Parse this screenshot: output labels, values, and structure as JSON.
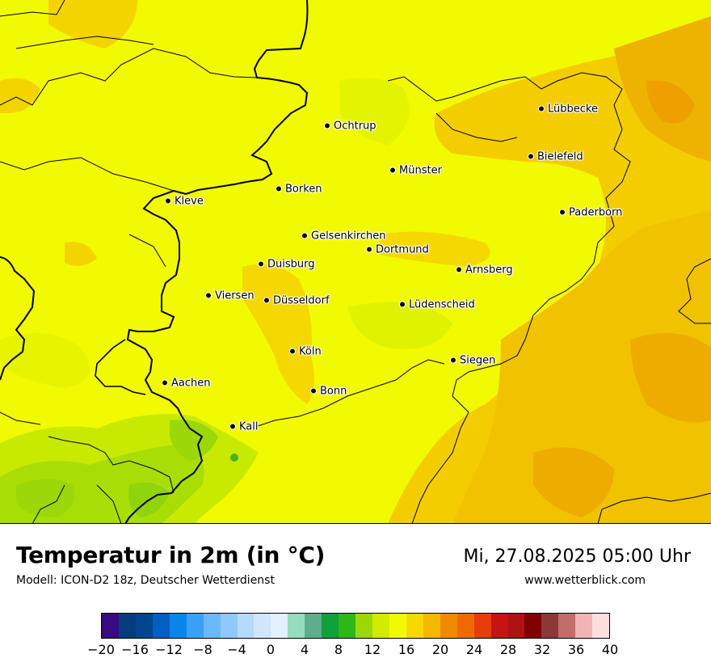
{
  "title": "Temperatur in 2m (in °C)",
  "model": "Modell: ICON-D2 18z, Deutscher Wetterdienst",
  "datetime": "Mi, 27.08.2025 05:00 Uhr",
  "website": "www.wetterblick.com",
  "legend": {
    "colors": [
      "#3a0a80",
      "#063c7e",
      "#00468f",
      "#005fbf",
      "#0a86ea",
      "#3aa0f5",
      "#6cb8fb",
      "#90c8fb",
      "#b4dafc",
      "#cfe6fd",
      "#e2f0ff",
      "#94dcbc",
      "#5fae8a",
      "#11a039",
      "#2db81a",
      "#9ad80a",
      "#d2ec00",
      "#f2fa00",
      "#f6d900",
      "#f4b800",
      "#f08a00",
      "#ee6a00",
      "#e63c0a",
      "#c41414",
      "#ae1212",
      "#800000",
      "#8a3838",
      "#c26c6c",
      "#f2b4b4",
      "#ffdede"
    ],
    "ticks": [
      "−20",
      "−16",
      "−12",
      "−8",
      "−4",
      "0",
      "4",
      "8",
      "12",
      "16",
      "20",
      "24",
      "28",
      "32",
      "36",
      "40"
    ]
  },
  "colors": {
    "yellow": "#f2fa00",
    "lightyellow": "#e8f500",
    "orange": "#f4c800",
    "darkorange": "#eda500",
    "green": "#9ad80a",
    "darkgreen": "#6cc018"
  },
  "cities": [
    {
      "name": "Lübbecke",
      "tx": "676",
      "ty": "134"
    },
    {
      "name": "Ochtrup",
      "tx": "411",
      "ty": "155"
    },
    {
      "name": "Bielefeld",
      "tx": "663",
      "ty": "193"
    },
    {
      "name": "Münster",
      "tx": "492",
      "ty": "210"
    },
    {
      "name": "Borken",
      "tx": "351",
      "ty": "233"
    },
    {
      "name": "Kleve",
      "tx": "214",
      "ty": "248"
    },
    {
      "name": "Paderborn",
      "tx": "702",
      "ty": "262"
    },
    {
      "name": "Gelsenkirchen",
      "tx": "383",
      "ty": "291"
    },
    {
      "name": "Dortmund",
      "tx": "463",
      "ty": "308"
    },
    {
      "name": "Duisburg",
      "tx": "329",
      "ty": "326"
    },
    {
      "name": "Arnsberg",
      "tx": "574",
      "ty": "333"
    },
    {
      "name": "Viersen",
      "tx": "264",
      "ty": "365"
    },
    {
      "name": "Düsseldorf",
      "tx": "336",
      "ty": "371"
    },
    {
      "name": "Lüdenscheid",
      "tx": "504",
      "ty": "376"
    },
    {
      "name": "Köln",
      "tx": "368",
      "ty": "434"
    },
    {
      "name": "Siegen",
      "tx": "567",
      "ty": "445"
    },
    {
      "name": "Aachen",
      "tx": "210",
      "ty": "473"
    },
    {
      "name": "Bonn",
      "tx": "394",
      "ty": "483"
    },
    {
      "name": "Kall",
      "tx": "294",
      "ty": "527"
    }
  ]
}
